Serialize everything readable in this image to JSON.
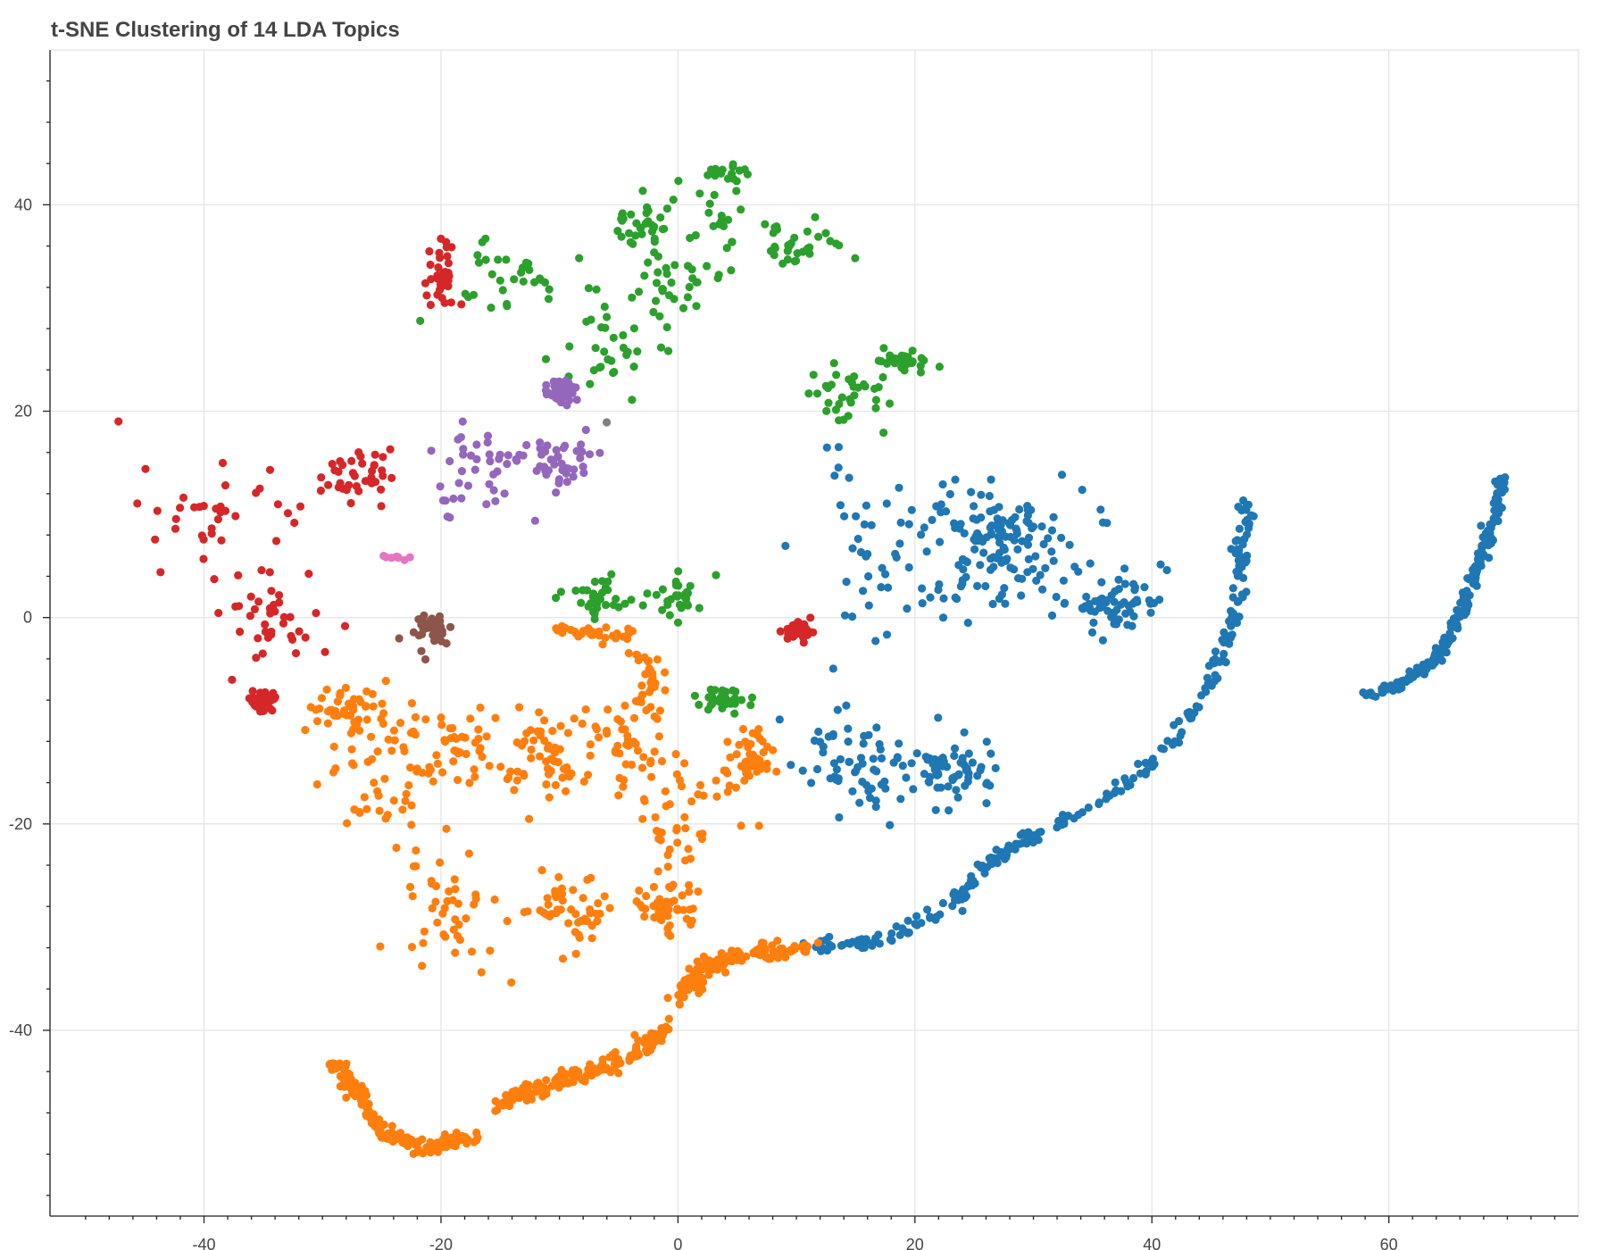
{
  "chart_data": {
    "type": "scatter",
    "title": "t-SNE Clustering of 14 LDA Topics",
    "xlabel": "",
    "ylabel": "",
    "xlim": [
      -53,
      76
    ],
    "ylim": [
      -58,
      55
    ],
    "x_ticks": [
      -40,
      -20,
      0,
      20,
      40,
      60
    ],
    "x_tick_labels": [
      "-40",
      "-20",
      "0",
      "20",
      "40",
      "60"
    ],
    "y_ticks": [
      -40,
      -20,
      0,
      20,
      40
    ],
    "y_tick_labels": [
      "-40",
      "-20",
      "0",
      "20",
      "40"
    ],
    "grid": true,
    "legend": "none",
    "clusters": [
      {
        "color": "#1f77b4",
        "shape": "blob",
        "count": 380,
        "seed": 11,
        "blobs": [
          [
            19,
            7,
            7,
            7
          ],
          [
            28,
            5,
            6,
            6
          ],
          [
            15,
            -14,
            4,
            4
          ],
          [
            23,
            -15,
            3,
            3
          ],
          [
            37,
            1,
            3,
            2
          ],
          [
            27,
            8,
            3,
            3
          ]
        ]
      },
      {
        "color": "#1f77b4",
        "shape": "path",
        "count": 260,
        "seed": 12,
        "jitter": 0.35,
        "points": [
          [
            11,
            -32
          ],
          [
            18,
            -31
          ],
          [
            23,
            -28
          ],
          [
            26,
            -24
          ],
          [
            30,
            -21
          ],
          [
            34,
            -19
          ],
          [
            38,
            -16
          ],
          [
            42,
            -12
          ],
          [
            45,
            -6
          ],
          [
            47,
            0
          ],
          [
            47.5,
            6
          ],
          [
            48,
            11
          ]
        ]
      },
      {
        "color": "#1f77b4",
        "shape": "path",
        "count": 200,
        "seed": 13,
        "jitter": 0.25,
        "points": [
          [
            58,
            -7.5
          ],
          [
            61,
            -6.5
          ],
          [
            64,
            -4
          ],
          [
            66,
            0
          ],
          [
            67.5,
            5
          ],
          [
            69,
            10
          ],
          [
            69.6,
            13.5
          ]
        ]
      },
      {
        "color": "#ff7f0e",
        "shape": "blob",
        "count": 470,
        "seed": 21,
        "blobs": [
          [
            -25,
            -15,
            4,
            7
          ],
          [
            -20,
            -28,
            4,
            5
          ],
          [
            -18,
            -12,
            4,
            4
          ],
          [
            -11,
            -14,
            3,
            4
          ],
          [
            -5,
            -12,
            4,
            5
          ],
          [
            0,
            -20,
            3,
            6
          ],
          [
            -9,
            -28,
            3,
            3
          ],
          [
            -1,
            -28,
            2,
            2
          ],
          [
            6,
            -14,
            2,
            3
          ],
          [
            -28,
            -9,
            3,
            2
          ]
        ]
      },
      {
        "color": "#ff7f0e",
        "shape": "path",
        "count": 170,
        "seed": 22,
        "jitter": 0.35,
        "points": [
          [
            -29,
            -43
          ],
          [
            -27,
            -46
          ],
          [
            -25,
            -50
          ],
          [
            -21,
            -51.5
          ],
          [
            -17,
            -50
          ]
        ]
      },
      {
        "color": "#ff7f0e",
        "shape": "path",
        "count": 170,
        "seed": 23,
        "jitter": 0.4,
        "points": [
          [
            -15,
            -47
          ],
          [
            -10,
            -45
          ],
          [
            -5,
            -43
          ],
          [
            -1,
            -40
          ]
        ]
      },
      {
        "color": "#ff7f0e",
        "shape": "path",
        "count": 130,
        "seed": 24,
        "jitter": 0.4,
        "points": [
          [
            0,
            -37
          ],
          [
            2,
            -34
          ],
          [
            6,
            -32.5
          ],
          [
            11,
            -32
          ]
        ]
      },
      {
        "color": "#ff7f0e",
        "shape": "path",
        "count": 60,
        "seed": 25,
        "jitter": 0.5,
        "points": [
          [
            -11,
            -1
          ],
          [
            -4,
            -2
          ],
          [
            -2,
            -6
          ],
          [
            -3,
            -9
          ]
        ]
      },
      {
        "color": "#2ca02c",
        "shape": "blob",
        "count": 360,
        "seed": 31,
        "blobs": [
          [
            -14,
            33,
            5,
            3
          ],
          [
            -6,
            26,
            3,
            4
          ],
          [
            -1,
            33,
            3,
            4
          ],
          [
            4,
            40,
            2,
            5
          ],
          [
            10,
            36,
            4,
            2
          ],
          [
            15,
            22,
            3,
            3
          ],
          [
            19,
            25,
            2,
            1
          ],
          [
            -3,
            38,
            2,
            2
          ],
          [
            -7,
            2,
            3,
            1.5
          ],
          [
            0,
            2,
            2,
            2
          ],
          [
            4,
            -8,
            2,
            1
          ]
        ]
      },
      {
        "color": "#d62728",
        "shape": "blob",
        "count": 230,
        "seed": 41,
        "blobs": [
          [
            -38,
            9,
            6,
            6
          ],
          [
            -34,
            0,
            3,
            3
          ],
          [
            -27,
            14,
            3,
            3
          ],
          [
            -20,
            33,
            1,
            3
          ],
          [
            -35,
            -8,
            1,
            1
          ],
          [
            10,
            -1,
            0.8,
            1
          ]
        ]
      },
      {
        "color": "#9467bd",
        "shape": "blob",
        "count": 130,
        "seed": 51,
        "blobs": [
          [
            -17,
            14,
            4,
            4
          ],
          [
            -10,
            15,
            2,
            2
          ],
          [
            -10,
            22,
            1,
            1
          ]
        ]
      },
      {
        "color": "#8c564b",
        "shape": "blob",
        "count": 40,
        "seed": 61,
        "blobs": [
          [
            -21,
            -1,
            1.6,
            1.5
          ]
        ]
      },
      {
        "color": "#e377c2",
        "shape": "blob",
        "count": 8,
        "seed": 71,
        "blobs": [
          [
            -24,
            6,
            1,
            0.4
          ]
        ]
      },
      {
        "color": "#7f7f7f",
        "shape": "blob",
        "count": 1,
        "seed": 81,
        "blobs": [
          [
            -6,
            19,
            0.1,
            0.1
          ]
        ]
      }
    ]
  }
}
